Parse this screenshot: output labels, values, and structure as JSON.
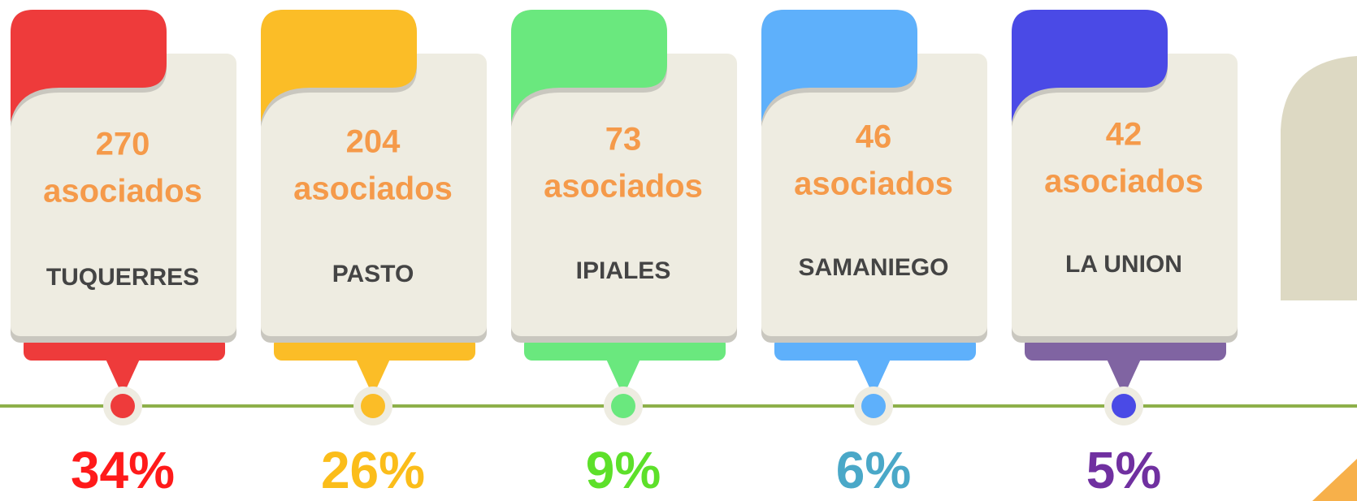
{
  "cards": [
    {
      "count": "270",
      "unit": "asociados",
      "city": "TUQUERRES",
      "percent": "34%",
      "color": "#ee3b3b",
      "tab_color": "#ee3b3b",
      "percent_color": "#ff1a1a"
    },
    {
      "count": "204",
      "unit": "asociados",
      "city": "PASTO",
      "percent": "26%",
      "color": "#fbbd27",
      "tab_color": "#fbbd27",
      "percent_color": "#fbbd1a"
    },
    {
      "count": "73",
      "unit": "asociados",
      "city": "IPIALES",
      "percent": "9%",
      "color": "#6ae87e",
      "tab_color": "#6ae87e",
      "percent_color": "#5de02a"
    },
    {
      "count": "46",
      "unit": "asociados",
      "city": "SAMANIEGO",
      "percent": "6%",
      "color": "#5eb0fb",
      "tab_color": "#5eb0fb",
      "percent_color": "#4aa8c8"
    },
    {
      "count": "42",
      "unit": "asociados",
      "city": "LA UNION",
      "percent": "5%",
      "color": "#4a4ae6",
      "tab_color": "#8064a2",
      "percent_color": "#7030a0"
    }
  ]
}
